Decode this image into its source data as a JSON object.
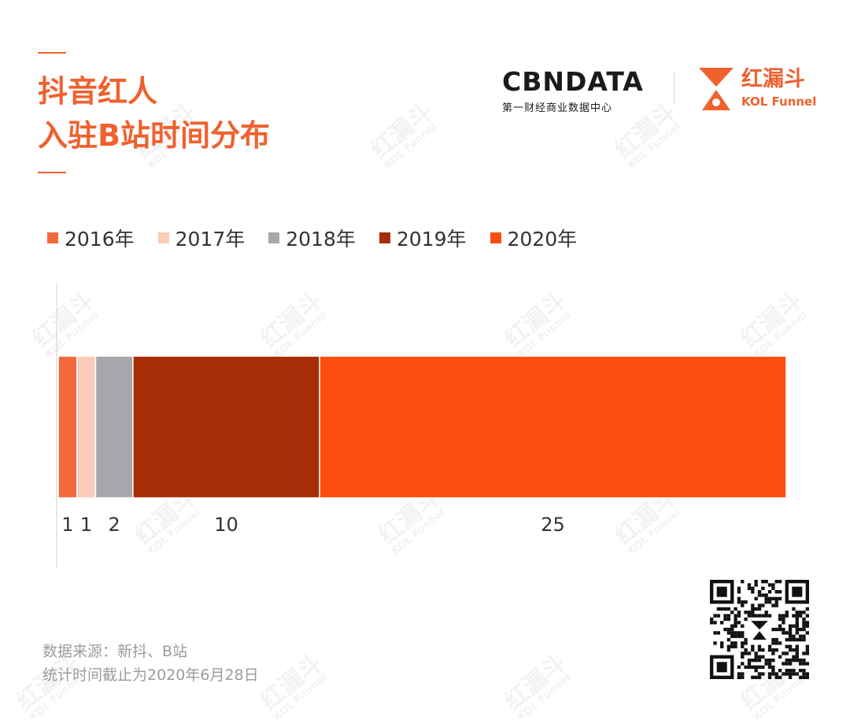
{
  "header": {
    "title_lines": [
      "抖音红人",
      "入驻B站时间分布"
    ]
  },
  "logos": {
    "cbn_name": "CBNDATA",
    "cbn_tagline": "第一财经商业数据中心",
    "kol_cn": "红漏斗",
    "kol_en": "KOL Funnel"
  },
  "watermark": {
    "cn": "红漏斗",
    "en": "KOL Funnel"
  },
  "colors": {
    "title": "#f0612e",
    "2016": "#f26a3c",
    "2017": "#fbcbb8",
    "2018": "#a6a7ab",
    "2019": "#a62d07",
    "2020": "#fc4f0f"
  },
  "chart_data": {
    "type": "bar",
    "orientation": "horizontal",
    "stacked": true,
    "categories": [
      ""
    ],
    "series": [
      {
        "name": "2016年",
        "values": [
          1
        ],
        "color": "#f26a3c"
      },
      {
        "name": "2017年",
        "values": [
          1
        ],
        "color": "#fbcbb8"
      },
      {
        "name": "2018年",
        "values": [
          2
        ],
        "color": "#a6a7ab"
      },
      {
        "name": "2019年",
        "values": [
          10
        ],
        "color": "#a62d07"
      },
      {
        "name": "2020年",
        "values": [
          25
        ],
        "color": "#fc4f0f"
      }
    ],
    "data_labels": [
      "1",
      "1",
      "2",
      "10",
      "25"
    ],
    "legend_position": "top-left",
    "grid": false
  },
  "footer": {
    "source_line1": "数据来源：新抖、B站",
    "source_line2": "统计时间截止为2020年6月28日"
  },
  "qr": {
    "icon": "qr-code-icon"
  }
}
